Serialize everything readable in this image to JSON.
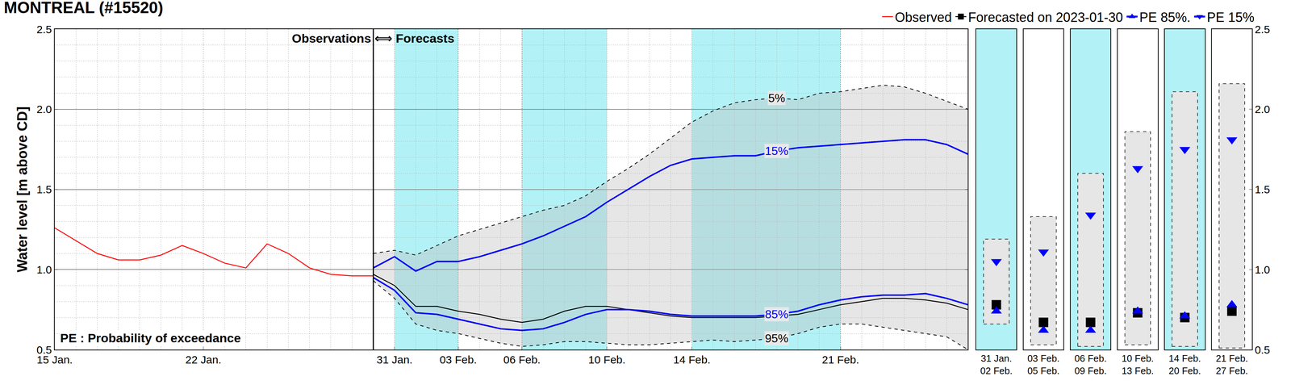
{
  "chart_data": {
    "type": "line",
    "title": "MONTREAL (#15520)",
    "y_label": "Water level [m above CD]",
    "separator_label": "Observations ⟺ Forecasts",
    "note": "PE : Probability of exceedance",
    "categories": [
      "15 Jan.",
      null,
      null,
      null,
      null,
      null,
      null,
      "22 Jan.",
      null,
      null,
      null,
      null,
      null,
      null,
      null,
      null,
      "31 Jan.",
      null,
      null,
      "03 Feb.",
      null,
      null,
      "06 Feb.",
      null,
      null,
      null,
      "10 Feb.",
      null,
      null,
      null,
      "14 Feb.",
      null,
      null,
      null,
      null,
      null,
      null,
      "21 Feb.",
      null,
      null,
      null,
      null,
      null,
      null
    ],
    "ylim": [
      0.5,
      2.5
    ],
    "yticks": [
      0.5,
      {
        "value": 1,
        "label": "1.0"
      },
      1.5,
      {
        "value": 2,
        "label": "2.0"
      },
      2.5
    ],
    "grid": true,
    "legend": "top right",
    "periods": {
      "labels": [
        [
          "31 Jan.",
          "02 Feb."
        ],
        [
          "03 Feb.",
          "05 Feb."
        ],
        [
          "06 Feb.",
          "09 Feb."
        ],
        [
          "10 Feb.",
          "13 Feb."
        ],
        [
          "14 Feb.",
          "20 Feb."
        ],
        [
          "21 Feb.",
          "27 Feb."
        ]
      ],
      "shaded": [
        true,
        false,
        true,
        false,
        true,
        false
      ]
    },
    "series": [
      {
        "name": "Observed",
        "color": "#ff0000",
        "line_style": "solid",
        "values": [
          1.26,
          1.18,
          1.1,
          1.06,
          1.06,
          1.09,
          1.15,
          1.1,
          1.04,
          1.01,
          1.16,
          1.1,
          1.01,
          0.97,
          0.96,
          0.96,
          null,
          null,
          null,
          null,
          null,
          null,
          null,
          null,
          null,
          null,
          null,
          null,
          null,
          null,
          null,
          null,
          null,
          null,
          null,
          null,
          null,
          null,
          null,
          null,
          null,
          null,
          null,
          null
        ]
      },
      {
        "name": "Forecasted on 2023-01-30",
        "color": "#000000",
        "line_style": "solid",
        "marker": "square",
        "values": [
          null,
          null,
          null,
          null,
          null,
          null,
          null,
          null,
          null,
          null,
          null,
          null,
          null,
          null,
          null,
          0.97,
          0.9,
          0.77,
          0.77,
          0.74,
          0.72,
          0.69,
          0.67,
          0.69,
          0.74,
          0.77,
          0.77,
          0.75,
          0.73,
          0.71,
          0.7,
          0.7,
          0.7,
          0.7,
          0.71,
          0.72,
          0.75,
          0.78,
          0.8,
          0.82,
          0.82,
          0.81,
          0.79,
          0.75
        ],
        "period_values": [
          0.78,
          0.67,
          0.67,
          0.73,
          0.7,
          0.74
        ]
      },
      {
        "name": "PE 85%.",
        "label": "85%",
        "color": "#0000ff",
        "line_style": "solid",
        "marker": "triangle-up",
        "values": [
          null,
          null,
          null,
          null,
          null,
          null,
          null,
          null,
          null,
          null,
          null,
          null,
          null,
          null,
          null,
          0.95,
          0.87,
          0.73,
          0.72,
          0.69,
          0.66,
          0.63,
          0.62,
          0.63,
          0.67,
          0.72,
          0.75,
          0.75,
          0.74,
          0.72,
          0.71,
          0.71,
          0.71,
          0.71,
          0.72,
          0.74,
          0.78,
          0.81,
          0.83,
          0.84,
          0.84,
          0.85,
          0.82,
          0.78
        ],
        "period_values": [
          0.74,
          0.62,
          0.62,
          0.74,
          0.71,
          0.78
        ]
      },
      {
        "name": "PE 15%",
        "label": "15%",
        "color": "#0000ff",
        "line_style": "solid",
        "marker": "triangle-down",
        "values": [
          null,
          null,
          null,
          null,
          null,
          null,
          null,
          null,
          null,
          null,
          null,
          null,
          null,
          null,
          null,
          1.01,
          1.08,
          0.99,
          1.05,
          1.05,
          1.08,
          1.12,
          1.16,
          1.21,
          1.27,
          1.33,
          1.42,
          1.5,
          1.58,
          1.65,
          1.69,
          1.7,
          1.71,
          1.71,
          1.74,
          1.76,
          1.77,
          1.78,
          1.79,
          1.8,
          1.81,
          1.81,
          1.78,
          1.72
        ],
        "period_values": [
          1.05,
          1.11,
          1.34,
          1.63,
          1.75,
          1.81
        ]
      },
      {
        "label": "5%",
        "color": "#000000",
        "line_style": "dashed",
        "values": [
          null,
          null,
          null,
          null,
          null,
          null,
          null,
          null,
          null,
          null,
          null,
          null,
          null,
          null,
          null,
          1.1,
          1.12,
          1.09,
          1.15,
          1.21,
          1.25,
          1.29,
          1.33,
          1.37,
          1.4,
          1.46,
          1.55,
          1.63,
          1.72,
          1.82,
          1.92,
          1.99,
          2.04,
          2.06,
          2.07,
          2.06,
          2.1,
          2.11,
          2.13,
          2.15,
          2.14,
          2.1,
          2.05,
          2.0
        ],
        "period_values": [
          1.19,
          1.33,
          1.6,
          1.86,
          2.11,
          2.16
        ]
      },
      {
        "label": "95%",
        "color": "#000000",
        "line_style": "dashed",
        "values": [
          null,
          null,
          null,
          null,
          null,
          null,
          null,
          null,
          null,
          null,
          null,
          null,
          null,
          null,
          null,
          0.93,
          0.82,
          0.66,
          0.62,
          0.6,
          0.57,
          0.54,
          0.52,
          0.53,
          0.55,
          0.55,
          0.54,
          0.53,
          0.53,
          0.54,
          0.55,
          0.56,
          0.55,
          0.56,
          0.57,
          0.6,
          0.64,
          0.66,
          0.66,
          0.64,
          0.62,
          0.6,
          0.58,
          0.5
        ],
        "period_values": [
          0.66,
          0.53,
          0.52,
          0.53,
          0.52,
          0.51
        ]
      }
    ]
  }
}
